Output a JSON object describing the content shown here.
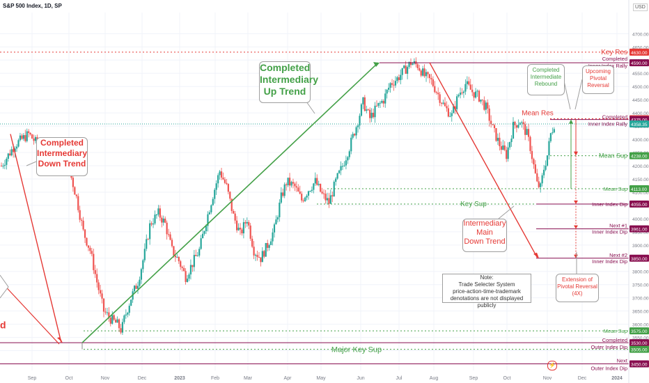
{
  "header": {
    "title": "S&P 500 Index, 1D, SP",
    "currency": "USD"
  },
  "chart_data": {
    "type": "candlestick",
    "y_axis": {
      "min": 3425,
      "max": 4780,
      "ticks": [
        3450,
        3500,
        3550,
        3600,
        3650,
        3700,
        3750,
        3800,
        3850,
        3900,
        3950,
        4000,
        4050,
        4100,
        4150,
        4200,
        4250,
        4300,
        4350,
        4400,
        4450,
        4500,
        4550,
        4600,
        4650,
        4700
      ]
    },
    "x_ticks": [
      "Sep",
      "Oct",
      "Nov",
      "Dec",
      "2023",
      "Feb",
      "Mar",
      "Apr",
      "May",
      "Jun",
      "Jul",
      "Aug",
      "Sep",
      "Oct",
      "Nov",
      "Dec",
      "2024"
    ],
    "last_price": 4358.35,
    "series_path": [
      [
        0,
        4200
      ],
      [
        2,
        4280
      ],
      [
        4,
        4320
      ],
      [
        6,
        4260
      ],
      [
        8,
        4250
      ],
      [
        10,
        4180
      ],
      [
        11,
        4080
      ],
      [
        12,
        3950
      ],
      [
        13,
        3880
      ],
      [
        14,
        3760
      ],
      [
        15,
        3650
      ],
      [
        16,
        3620
      ],
      [
        17,
        3600
      ],
      [
        17.6,
        3575
      ],
      [
        18,
        3620
      ],
      [
        19,
        3700
      ],
      [
        20,
        3760
      ],
      [
        21,
        3870
      ],
      [
        21.8,
        3980
      ],
      [
        23,
        4020
      ],
      [
        24,
        3980
      ],
      [
        25,
        3880
      ],
      [
        26,
        3840
      ],
      [
        27,
        3780
      ],
      [
        28,
        3830
      ],
      [
        29,
        3880
      ],
      [
        30,
        3990
      ],
      [
        31,
        4090
      ],
      [
        32,
        4180
      ],
      [
        33,
        4120
      ],
      [
        34,
        4010
      ],
      [
        35,
        3940
      ],
      [
        36,
        4000
      ],
      [
        37,
        3880
      ],
      [
        38,
        3850
      ],
      [
        39,
        3900
      ],
      [
        40,
        3960
      ],
      [
        41,
        4080
      ],
      [
        41.8,
        4140
      ],
      [
        43,
        4120
      ],
      [
        44,
        4070
      ],
      [
        45,
        4110
      ],
      [
        46,
        4140
      ],
      [
        47,
        4090
      ],
      [
        48,
        4060
      ],
      [
        49,
        4140
      ],
      [
        50,
        4200
      ],
      [
        51,
        4270
      ],
      [
        52,
        4350
      ],
      [
        53,
        4440
      ],
      [
        54,
        4380
      ],
      [
        55,
        4420
      ],
      [
        56,
        4450
      ],
      [
        57,
        4510
      ],
      [
        58,
        4530
      ],
      [
        59,
        4560
      ],
      [
        60,
        4590
      ],
      [
        61,
        4580
      ],
      [
        62,
        4540
      ],
      [
        63,
        4520
      ],
      [
        64,
        4470
      ],
      [
        65,
        4420
      ],
      [
        66,
        4390
      ],
      [
        67,
        4470
      ],
      [
        68,
        4510
      ],
      [
        69,
        4480
      ],
      [
        70,
        4460
      ],
      [
        71,
        4420
      ],
      [
        72,
        4340
      ],
      [
        73,
        4280
      ],
      [
        74,
        4240
      ],
      [
        75,
        4350
      ],
      [
        76,
        4370
      ],
      [
        77,
        4320
      ],
      [
        77.5,
        4270
      ],
      [
        78,
        4200
      ],
      [
        78.5,
        4130
      ],
      [
        79,
        4117
      ],
      [
        79.5,
        4190
      ],
      [
        80,
        4240
      ],
      [
        80.5,
        4320
      ],
      [
        81,
        4358
      ]
    ]
  },
  "levels": [
    {
      "price": 4630.0,
      "name": "Key Res",
      "badge": "4630.00",
      "color": "#e53935",
      "style": "dotted"
    },
    {
      "price": 4590.0,
      "name": "Completed Inner Index Rally",
      "line1": "Completed",
      "line2": "Inner Index Rally",
      "badge": "4590.00",
      "color": "#880e4f",
      "style": "solid"
    },
    {
      "price": 4378.0,
      "badge": "4378.00",
      "color": "#e53935",
      "style": "dotted"
    },
    {
      "price": 4375.0,
      "name": "Completed Inner Index Rally",
      "line1": "Completed",
      "line2": "Inner Index Rally",
      "badge": "4375.00",
      "color": "#880e4f",
      "style": "solid"
    },
    {
      "price": 4358.35,
      "badge": "4358.35",
      "color": "#26a69a",
      "style": "last"
    },
    {
      "price": 4238.0,
      "name": "Mean Sup",
      "badge": "4238.00",
      "color": "#43a047",
      "style": "dotted"
    },
    {
      "price": 4113.0,
      "name": "Mean Sup",
      "badge": "4113.00",
      "color": "#43a047",
      "style": "dotted"
    },
    {
      "price": 4055.0,
      "name": "Inner Index Dip",
      "badge": "4055.00",
      "color": "#880e4f",
      "style": "solid"
    },
    {
      "price": 4055.0,
      "name": "Key Sup",
      "badge": "4055.00",
      "color": "#43a047",
      "style": "dotted"
    },
    {
      "price": 3961.0,
      "name": "Next #1 Inner Index Dip",
      "line1": "Next #1",
      "line2": "Inner Index Dip",
      "badge": "3961.00",
      "color": "#880e4f",
      "style": "solid"
    },
    {
      "price": 3850.0,
      "name": "Next #2 Inner Index Dip",
      "line1": "Next #2",
      "line2": "Inner Index Dip",
      "badge": "3850.00",
      "color": "#880e4f",
      "style": "solid"
    },
    {
      "price": 3575.0,
      "name": "Mean Sup",
      "badge": "3575.00",
      "color": "#43a047",
      "style": "dotted"
    },
    {
      "price": 3530.0,
      "name": "Completed Outer Index Dip",
      "line1": "Completed",
      "line2": "Outer Index Dip",
      "badge": "3530.00",
      "color": "#880e4f",
      "style": "solid"
    },
    {
      "price": 3505.0,
      "name": "Major Key Sup",
      "badge": "3505.00",
      "color": "#43a047",
      "style": "dotted"
    },
    {
      "price": 3450.0,
      "name": "Next Outer Index Dip",
      "line1": "Next",
      "line2": "Outer Index Dip",
      "badge": "3450.00",
      "color": "#880e4f",
      "style": "solid"
    }
  ],
  "annotations": {
    "completed_up_trend": [
      "Completed",
      "Intermediary",
      "Up Trend"
    ],
    "completed_down_trend": [
      "Completed",
      "Intermediary",
      "Down Trend"
    ],
    "main_down_trend": [
      "Intermediary",
      "Main",
      "Down Trend"
    ],
    "completed_rebound": [
      "Completed",
      "Intermediate",
      "Rebound"
    ],
    "upcoming_reversal": [
      "Upcoming",
      "Pivotal",
      "Reversal"
    ],
    "extension": [
      "Extension of",
      "Pivotal Reversal",
      "(4X)"
    ],
    "mean_res": "Mean Res",
    "key_sup": "Key Sup",
    "major_key_sup": "Major Key Sup",
    "left_partial": "d",
    "note": [
      "Note:",
      "Trade Selecter System",
      "price-action-time-trademark",
      "denotations are not displayed publicly"
    ]
  },
  "colors": {
    "up": "#26a69a",
    "down": "#ef5350",
    "green_trend": "#43a047",
    "red_trend": "#e53935",
    "maroon": "#880e4f"
  }
}
